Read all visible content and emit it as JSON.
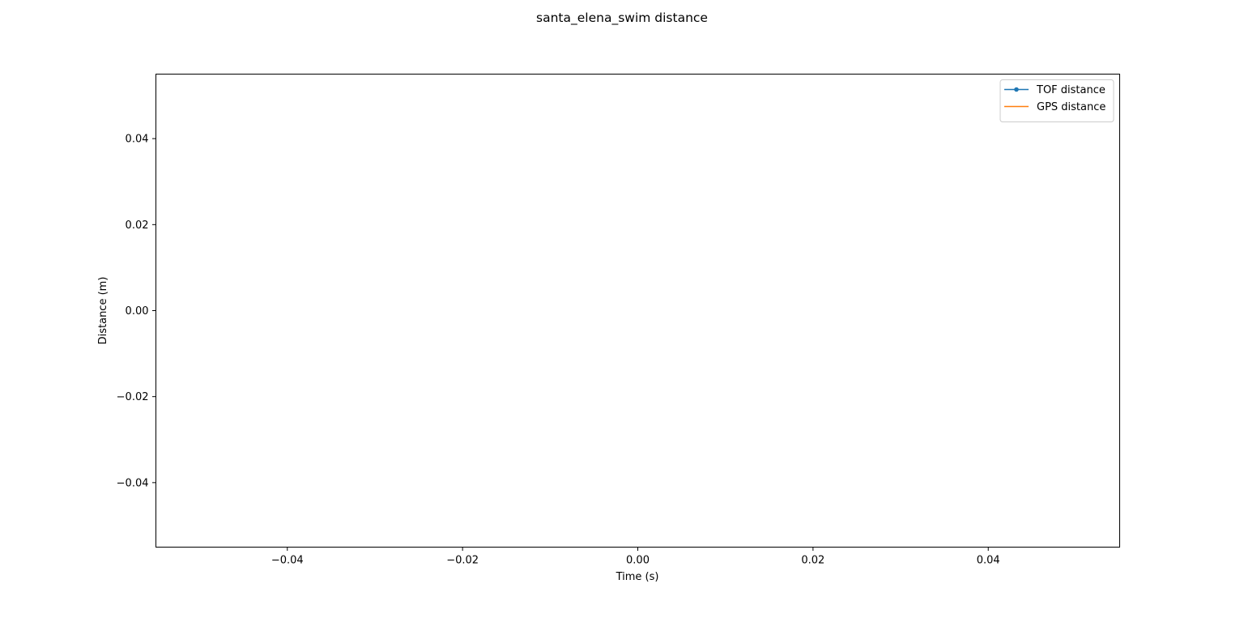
{
  "chart_data": {
    "type": "line",
    "title": "santa_elena_swim distance",
    "xlabel": "Time (s)",
    "ylabel": "Distance (m)",
    "xlim": [
      -0.055,
      0.055
    ],
    "ylim": [
      -0.055,
      0.055
    ],
    "x_ticks": [
      -0.04,
      -0.02,
      0.0,
      0.02,
      0.04
    ],
    "x_tick_labels": [
      "−0.04",
      "−0.02",
      "0.00",
      "0.02",
      "0.04"
    ],
    "y_ticks": [
      0.04,
      0.02,
      0.0,
      -0.02,
      -0.04
    ],
    "y_tick_labels": [
      "0.04",
      "0.02",
      "0.00",
      "−0.02",
      "−0.04"
    ],
    "grid": false,
    "legend_position": "top-right",
    "series": [
      {
        "name": "TOF distance",
        "color": "#1f77b4",
        "marker": "dot",
        "x": [],
        "y": []
      },
      {
        "name": "GPS distance",
        "color": "#ff7f0e",
        "marker": "none",
        "x": [],
        "y": []
      }
    ]
  }
}
